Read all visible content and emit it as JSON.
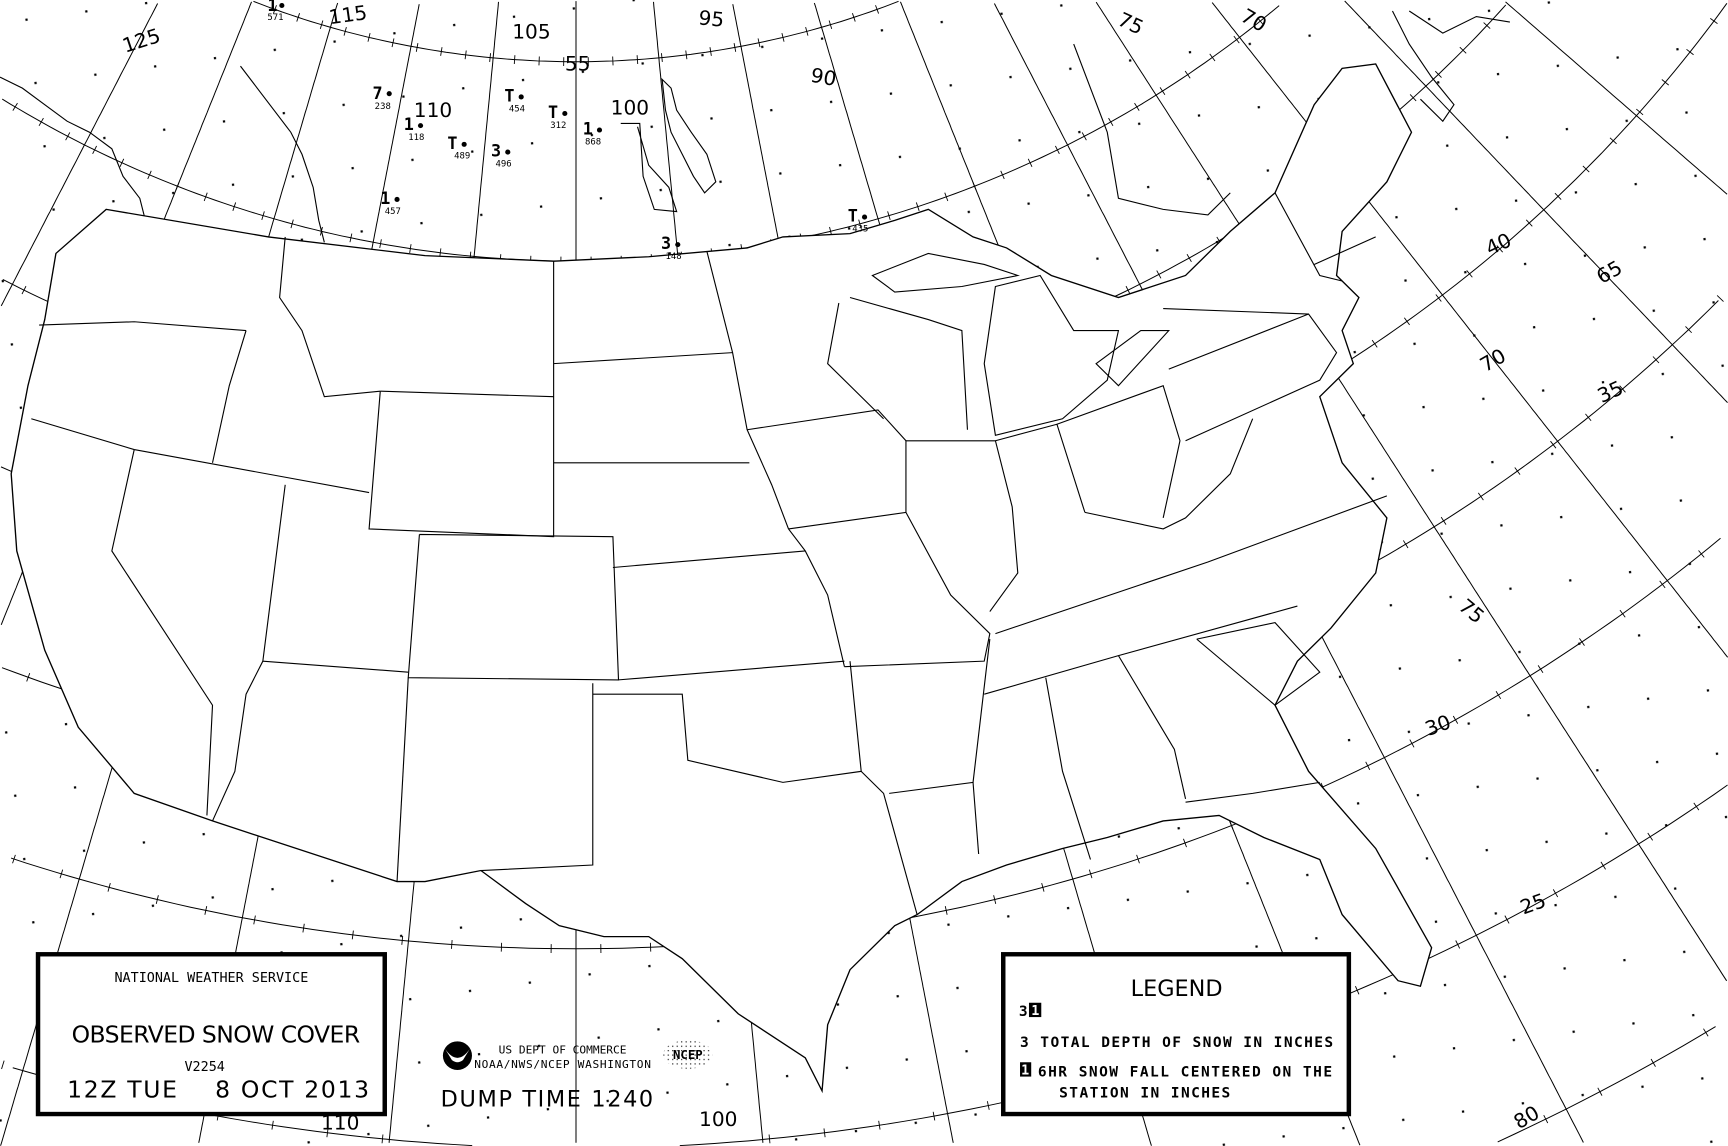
{
  "map": {
    "title_box": {
      "agency": "NATIONAL WEATHER SERVICE",
      "product": "OBSERVED SNOW COVER",
      "version": "V2254",
      "valid_time": "12Z TUE    8 OCT 2013"
    },
    "credits": {
      "line1": "US DEPT OF COMMERCE",
      "line2": "NOAA/NWS/NCEP WASHINGTON",
      "ncep_logo": "NCEP",
      "dump_time": "DUMP TIME 1240"
    },
    "legend": {
      "title": "LEGEND",
      "sample_depth": "3",
      "sample_fall": "1",
      "line_depth": "3 TOTAL DEPTH OF SNOW IN INCHES",
      "line_fall_box": "1",
      "line_fall_1": "6HR SNOW FALL CENTERED ON THE",
      "line_fall_2": "STATION IN INCHES"
    },
    "grid_labels": {
      "lon_125": "125",
      "lon_115": "115",
      "lon_105": "105",
      "lon_95": "95",
      "lon_110": "110",
      "lon_100": "100",
      "lon_90": "90",
      "lon_75_top": "75",
      "lon_70_top": "70",
      "lat_55": "55",
      "lat_40": "40",
      "lon_65": "65",
      "lon_70": "70",
      "lat_35": "35",
      "lon_75": "75",
      "lat_30": "30",
      "lat_25": "25",
      "lon_80": "80",
      "lon_100_bottom": "100",
      "lon_110_bottom": "110"
    },
    "stations": [
      {
        "depth": "1",
        "id": "571"
      },
      {
        "depth": "7",
        "id": "238"
      },
      {
        "depth": "1",
        "id": "118"
      },
      {
        "depth": "T",
        "id": "489"
      },
      {
        "depth": "3",
        "id": "496"
      },
      {
        "depth": "T",
        "id": "454"
      },
      {
        "depth": "T",
        "id": "312"
      },
      {
        "depth": "1",
        "id": "868"
      },
      {
        "depth": "1",
        "id": "457"
      },
      {
        "depth": "3",
        "id": "148"
      },
      {
        "depth": "T",
        "id": "435"
      }
    ],
    "colors": {
      "ink": "#000000",
      "background": "#ffffff"
    }
  }
}
